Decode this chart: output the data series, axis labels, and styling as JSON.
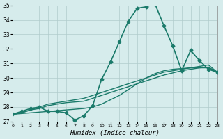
{
  "xlabel": "Humidex (Indice chaleur)",
  "ylabel": "",
  "xlim": [
    0,
    23
  ],
  "ylim": [
    27,
    35
  ],
  "yticks": [
    27,
    28,
    29,
    30,
    31,
    32,
    33,
    34,
    35
  ],
  "xticks": [
    0,
    1,
    2,
    3,
    4,
    5,
    6,
    7,
    8,
    9,
    10,
    11,
    12,
    13,
    14,
    15,
    16,
    17,
    18,
    19,
    20,
    21,
    22,
    23
  ],
  "background_color": "#d6ecec",
  "grid_color": "#b0cccc",
  "line_color": "#1a7a6a",
  "series": [
    {
      "x": [
        0,
        1,
        2,
        3,
        4,
        5,
        6,
        7,
        8,
        9,
        10,
        11,
        12,
        13,
        14,
        15,
        16,
        17,
        18,
        19,
        20,
        21,
        22,
        23
      ],
      "y": [
        27.5,
        27.7,
        27.9,
        28.0,
        27.7,
        27.7,
        27.6,
        27.1,
        27.4,
        28.1,
        29.9,
        31.1,
        32.5,
        33.9,
        34.8,
        34.9,
        35.1,
        33.6,
        32.2,
        30.5,
        31.9,
        31.2,
        30.6,
        30.4
      ],
      "marker": "D",
      "markersize": 2.5,
      "linewidth": 1.2
    },
    {
      "x": [
        0,
        1,
        2,
        3,
        4,
        5,
        6,
        7,
        8,
        9,
        10,
        11,
        12,
        13,
        14,
        15,
        16,
        17,
        18,
        19,
        20,
        21,
        22,
        23
      ],
      "y": [
        27.5,
        27.6,
        27.8,
        28.0,
        28.2,
        28.3,
        28.4,
        28.5,
        28.6,
        28.8,
        29.0,
        29.2,
        29.4,
        29.6,
        29.8,
        30.0,
        30.2,
        30.4,
        30.5,
        30.6,
        30.7,
        30.8,
        30.9,
        30.4
      ],
      "marker": null,
      "markersize": 0,
      "linewidth": 1.0
    },
    {
      "x": [
        0,
        1,
        2,
        3,
        4,
        5,
        6,
        7,
        8,
        9,
        10,
        11,
        12,
        13,
        14,
        15,
        16,
        17,
        18,
        19,
        20,
        21,
        22,
        23
      ],
      "y": [
        27.5,
        27.6,
        27.8,
        27.9,
        28.1,
        28.2,
        28.3,
        28.35,
        28.4,
        28.6,
        28.8,
        29.0,
        29.2,
        29.4,
        29.6,
        29.8,
        30.0,
        30.2,
        30.35,
        30.5,
        30.6,
        30.7,
        30.75,
        30.4
      ],
      "marker": null,
      "markersize": 0,
      "linewidth": 1.0
    },
    {
      "x": [
        0,
        1,
        2,
        3,
        4,
        5,
        6,
        7,
        8,
        9,
        10,
        11,
        12,
        13,
        14,
        15,
        16,
        17,
        18,
        19,
        20,
        21,
        22,
        23
      ],
      "y": [
        27.5,
        27.55,
        27.6,
        27.65,
        27.7,
        27.75,
        27.8,
        27.85,
        27.9,
        28.0,
        28.2,
        28.5,
        28.8,
        29.2,
        29.6,
        30.0,
        30.3,
        30.5,
        30.6,
        30.65,
        30.7,
        30.7,
        30.7,
        30.4
      ],
      "marker": null,
      "markersize": 0,
      "linewidth": 1.0
    }
  ]
}
